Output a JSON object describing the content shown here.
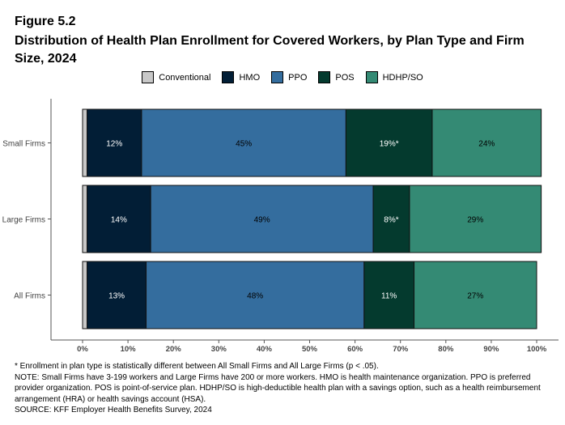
{
  "figure_label": "Figure 5.2",
  "title": "Distribution of Health Plan Enrollment for Covered Workers, by Plan Type and Firm Size, 2024",
  "chart_data": {
    "type": "bar",
    "orientation": "horizontal-stacked",
    "categories": [
      "Small Firms",
      "Large Firms",
      "All Firms"
    ],
    "series": [
      {
        "name": "Conventional",
        "color": "#c8c8c8",
        "values": [
          1,
          1,
          1
        ],
        "labels": [
          "",
          "",
          ""
        ],
        "label_color": "#fff"
      },
      {
        "name": "HMO",
        "color": "#021e36",
        "values": [
          12,
          14,
          13
        ],
        "labels": [
          "12%",
          "14%",
          "13%"
        ],
        "label_color": "#fff"
      },
      {
        "name": "PPO",
        "color": "#346d9e",
        "values": [
          45,
          49,
          48
        ],
        "labels": [
          "45%",
          "49%",
          "48%"
        ],
        "label_color": "#000"
      },
      {
        "name": "POS",
        "color": "#043a2e",
        "values": [
          19,
          8,
          11
        ],
        "labels": [
          "19%*",
          "8%*",
          "11%"
        ],
        "label_color": "#fff"
      },
      {
        "name": "HDHP/SO",
        "color": "#348a74",
        "values": [
          24,
          29,
          27
        ],
        "labels": [
          "24%",
          "29%",
          "27%"
        ],
        "label_color": "#000"
      }
    ],
    "xlim": [
      0,
      100
    ],
    "xticks": [
      "0%",
      "10%",
      "20%",
      "30%",
      "40%",
      "50%",
      "60%",
      "70%",
      "80%",
      "90%",
      "100%"
    ],
    "legend": "top",
    "grid": false
  },
  "notes": [
    "* Enrollment in plan type is statistically different between All Small Firms and All Large Firms (p < .05).",
    "NOTE: Small Firms have 3-199 workers and Large Firms have 200 or more workers. HMO is health maintenance organization. PPO is preferred provider organization. POS is point-of-service plan. HDHP/SO is high-deductible health plan with a savings option, such as a health reimbursement arrangement (HRA) or health savings account (HSA).",
    "SOURCE: KFF Employer Health Benefits Survey, 2024"
  ]
}
